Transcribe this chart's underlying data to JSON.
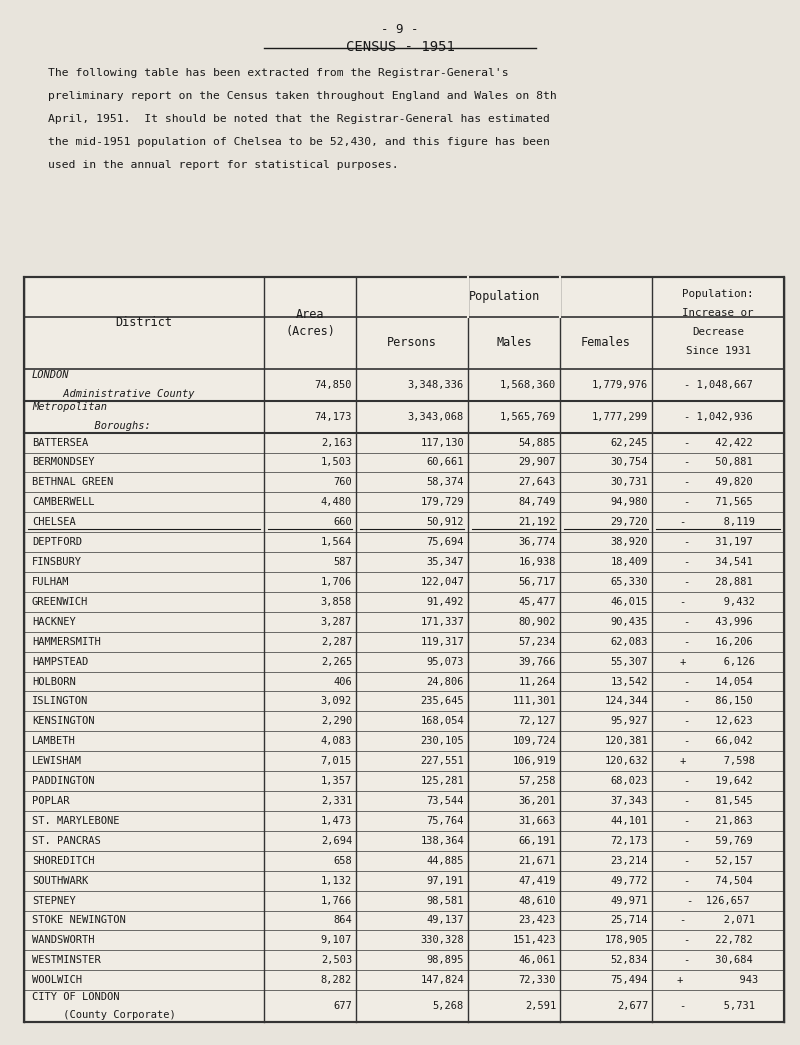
{
  "page_number": "- 9 -",
  "title": "CENSUS - 1951",
  "intro_text": "The following table has been extracted from the Registrar-General's\npreliminary report on the Census taken throughout England and Wales on 8th\nApril, 1951.  It should be noted that the Registrar-General has estimated\nthe mid-1951 population of Chelsea to be 52,430, and this figure has been\nused in the annual report for statistical purposes.",
  "col_headers": [
    "District",
    "Area\n(Acres)",
    "Persons",
    "Males",
    "Females",
    "Population:\nIncrease or\nDecrease\nSince 1931"
  ],
  "col_header_groups": [
    "",
    "",
    "Population",
    "",
    "",
    ""
  ],
  "rows": [
    [
      "LONDON\nAdministrative County",
      "74,850",
      "3,348,336",
      "1,568,360",
      "1,779,976",
      "- 1,048,667"
    ],
    [
      "Metropolitan\n     Boroughs:",
      "74,173",
      "3,343,068",
      "1,565,769",
      "1,777,299",
      "- 1,042,936"
    ],
    [
      "BATTERSEA",
      "2,163",
      "117,130",
      "54,885",
      "62,245",
      "-    42,422"
    ],
    [
      "BERMONDSEY",
      "1,503",
      "60,661",
      "29,907",
      "30,754",
      "-    50,881"
    ],
    [
      "BETHNAL GREEN",
      "760",
      "58,374",
      "27,643",
      "30,731",
      "-    49,820"
    ],
    [
      "CAMBERWELL",
      "4,480",
      "179,729",
      "84,749",
      "94,980",
      "-    71,565"
    ],
    [
      "CHELSEA",
      "660",
      "50,912",
      "21,192",
      "29,720",
      "-      8,119"
    ],
    [
      "DEPTFORD",
      "1,564",
      "75,694",
      "36,774",
      "38,920",
      "-    31,197"
    ],
    [
      "FINSBURY",
      "587",
      "35,347",
      "16,938",
      "18,409",
      "-    34,541"
    ],
    [
      "FULHAM",
      "1,706",
      "122,047",
      "56,717",
      "65,330",
      "-    28,881"
    ],
    [
      "GREENWICH",
      "3,858",
      "91,492",
      "45,477",
      "46,015",
      "-      9,432"
    ],
    [
      "HACKNEY",
      "3,287",
      "171,337",
      "80,902",
      "90,435",
      "-    43,996"
    ],
    [
      "HAMMERSMITH",
      "2,287",
      "119,317",
      "57,234",
      "62,083",
      "-    16,206"
    ],
    [
      "HAMPSTEAD",
      "2,265",
      "95,073",
      "39,766",
      "55,307",
      "+      6,126"
    ],
    [
      "HOLBORN",
      "406",
      "24,806",
      "11,264",
      "13,542",
      "-    14,054"
    ],
    [
      "ISLINGTON",
      "3,092",
      "235,645",
      "111,301",
      "124,344",
      "-    86,150"
    ],
    [
      "KENSINGTON",
      "2,290",
      "168,054",
      "72,127",
      "95,927",
      "-    12,623"
    ],
    [
      "LAMBETH",
      "4,083",
      "230,105",
      "109,724",
      "120,381",
      "-    66,042"
    ],
    [
      "LEWISHAM",
      "7,015",
      "227,551",
      "106,919",
      "120,632",
      "+      7,598"
    ],
    [
      "PADDINGTON",
      "1,357",
      "125,281",
      "57,258",
      "68,023",
      "-    19,642"
    ],
    [
      "POPLAR",
      "2,331",
      "73,544",
      "36,201",
      "37,343",
      "-    81,545"
    ],
    [
      "ST. MARYLEBONE",
      "1,473",
      "75,764",
      "31,663",
      "44,101",
      "-    21,863"
    ],
    [
      "ST. PANCRAS",
      "2,694",
      "138,364",
      "66,191",
      "72,173",
      "-    59,769"
    ],
    [
      "SHOREDITCH",
      "658",
      "44,885",
      "21,671",
      "23,214",
      "-    52,157"
    ],
    [
      "SOUTHWARK",
      "1,132",
      "97,191",
      "47,419",
      "49,772",
      "-    74,504"
    ],
    [
      "STEPNEY",
      "1,766",
      "98,581",
      "48,610",
      "49,971",
      "-  126,657"
    ],
    [
      "STOKE NEWINGTON",
      "864",
      "49,137",
      "23,423",
      "25,714",
      "-      2,071"
    ],
    [
      "WANDSWORTH",
      "9,107",
      "330,328",
      "151,423",
      "178,905",
      "-    22,782"
    ],
    [
      "WESTMINSTER",
      "2,503",
      "98,895",
      "46,061",
      "52,834",
      "-    30,684"
    ],
    [
      "WOOLWICH",
      "8,282",
      "147,824",
      "72,330",
      "75,494",
      "+         943"
    ],
    [
      "CITY OF LONDON\n(County Corporate)",
      "677",
      "5,268",
      "2,591",
      "2,677",
      "-      5,731"
    ]
  ],
  "underlined_rows": [
    6
  ],
  "bold_rows": [
    0,
    1
  ],
  "bg_color": "#e8e4dc",
  "table_bg": "#f0ece4",
  "text_color": "#1a1a1a",
  "border_color": "#333333"
}
